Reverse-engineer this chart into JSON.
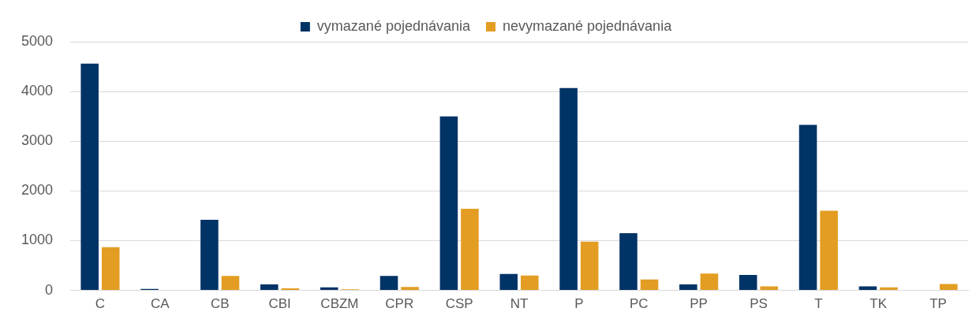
{
  "chart_data": {
    "type": "bar",
    "categories": [
      "C",
      "CA",
      "CB",
      "CBI",
      "CBZM",
      "CPR",
      "CSP",
      "NT",
      "P",
      "PC",
      "PP",
      "PS",
      "T",
      "TK",
      "TP"
    ],
    "series": [
      {
        "name": "vymazané pojednávania",
        "color": "#003366",
        "values": [
          4560,
          30,
          1420,
          120,
          60,
          290,
          3500,
          330,
          4070,
          1150,
          120,
          310,
          3330,
          80,
          null
        ]
      },
      {
        "name": "nevymazané pojednávania",
        "color": "#e39d23",
        "values": [
          870,
          null,
          290,
          40,
          20,
          70,
          1640,
          300,
          980,
          220,
          340,
          80,
          1600,
          60,
          130
        ]
      }
    ],
    "ylim": [
      0,
      5000
    ],
    "yticks": [
      0,
      1000,
      2000,
      3000,
      4000,
      5000
    ],
    "grid": "y",
    "legend": "top"
  }
}
